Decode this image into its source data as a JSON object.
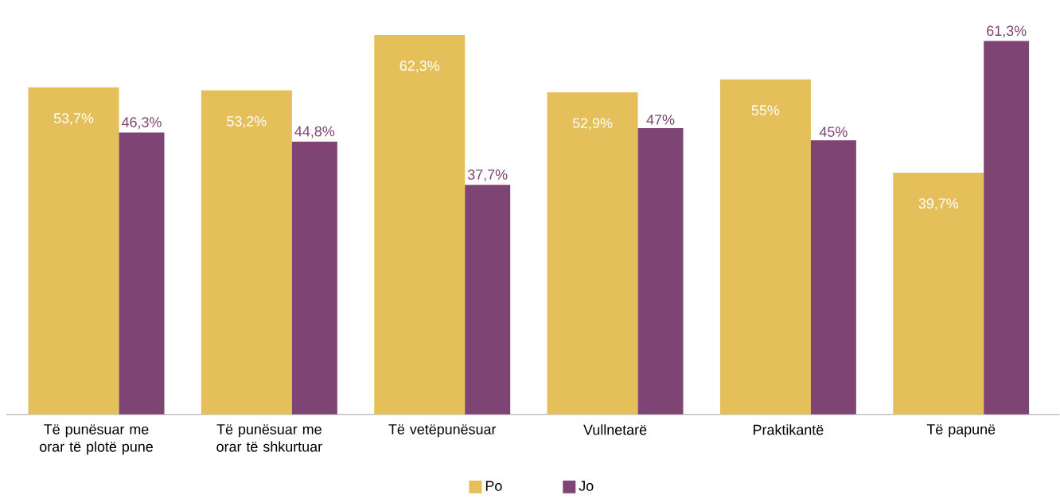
{
  "chart_data": {
    "type": "bar",
    "categories": [
      "Të punësuar me orar të plotë pune",
      "Të punësuar me orar të shkurtuar",
      "Të vetëpunësuar",
      "Vullnetarë",
      "Praktikantë",
      "Të papunë"
    ],
    "series": [
      {
        "name": "Po",
        "color": "#e5c05a",
        "values": [
          53.7,
          53.2,
          62.3,
          52.9,
          55,
          39.7
        ],
        "value_labels": [
          "53,7%",
          "53,2%",
          "62,3%",
          "52,9%",
          "55%",
          "39,7%"
        ]
      },
      {
        "name": "Jo",
        "color": "#7e4574",
        "values": [
          46.3,
          44.8,
          37.7,
          47,
          45,
          61.3
        ],
        "value_labels": [
          "46,3%",
          "44,8%",
          "37,7%",
          "47%",
          "45%",
          "61,3%"
        ]
      }
    ],
    "legend": "bottom"
  }
}
